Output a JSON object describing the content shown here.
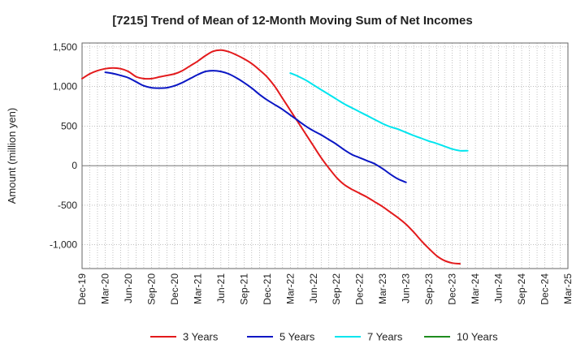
{
  "chart_data": {
    "type": "line",
    "title": "[7215]  Trend of Mean of 12-Month Moving Sum of Net Incomes",
    "xlabel": "",
    "ylabel": "Amount (million yen)",
    "ylim": [
      -1300,
      1550
    ],
    "yticks": [
      1500,
      1000,
      500,
      0,
      -500,
      -1000
    ],
    "ytick_labels": [
      "1,500",
      "1,000",
      "500",
      "0",
      "-500",
      "-1,000"
    ],
    "x_categories": [
      "Dec-19",
      "Mar-20",
      "Jun-20",
      "Sep-20",
      "Dec-20",
      "Mar-21",
      "Jun-21",
      "Sep-21",
      "Dec-21",
      "Mar-22",
      "Jun-22",
      "Sep-22",
      "Dec-22",
      "Mar-23",
      "Jun-23",
      "Sep-23",
      "Dec-23",
      "Mar-24",
      "Jun-24",
      "Sep-24",
      "Dec-24",
      "Mar-25"
    ],
    "grid": true,
    "legend_position": "bottom",
    "series": [
      {
        "name": "3 Years",
        "color": "#e31a1c",
        "start_index": 0,
        "values": [
          1100,
          1160,
          1200,
          1225,
          1235,
          1225,
          1190,
          1125,
          1100,
          1100,
          1120,
          1140,
          1160,
          1200,
          1260,
          1320,
          1390,
          1445,
          1460,
          1440,
          1400,
          1350,
          1290,
          1210,
          1120,
          1000,
          850,
          700,
          550,
          400,
          250,
          100,
          -30,
          -150,
          -240,
          -300,
          -350,
          -400,
          -460,
          -520,
          -590,
          -660,
          -740,
          -840,
          -950,
          -1050,
          -1140,
          -1200,
          -1230,
          -1240
        ]
      },
      {
        "name": "5 Years",
        "color": "#0a16c4",
        "start_index": 3,
        "values": [
          1180,
          1165,
          1140,
          1110,
          1060,
          1010,
          985,
          980,
          985,
          1010,
          1050,
          1100,
          1150,
          1190,
          1200,
          1190,
          1160,
          1110,
          1050,
          980,
          900,
          830,
          770,
          710,
          640,
          570,
          500,
          440,
          390,
          330,
          270,
          200,
          140,
          100,
          60,
          20,
          -40,
          -110,
          -170,
          -210
        ]
      },
      {
        "name": "7 Years",
        "color": "#00e5ee",
        "start_index": 27,
        "values": [
          1170,
          1130,
          1080,
          1020,
          960,
          900,
          840,
          780,
          730,
          680,
          630,
          580,
          530,
          490,
          460,
          420,
          380,
          345,
          310,
          280,
          245,
          210,
          190,
          190
        ]
      },
      {
        "name": "10 Years",
        "color": "#1e8c1e",
        "start_index": 0,
        "values": []
      }
    ]
  }
}
